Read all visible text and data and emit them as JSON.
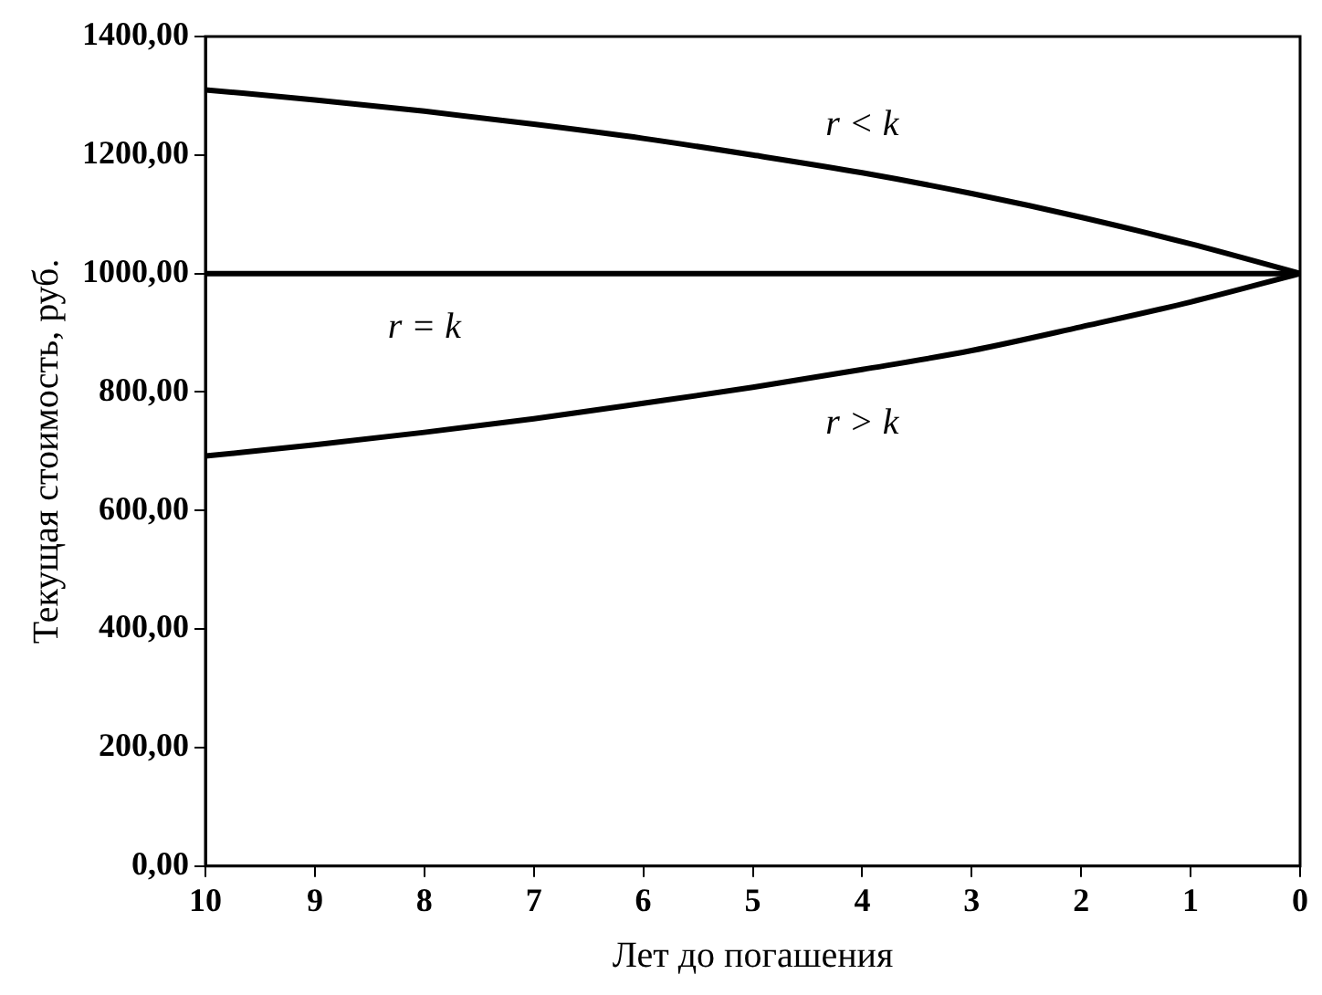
{
  "chart_data": {
    "type": "line",
    "xlabel": "Лет до погашения",
    "ylabel": "Текущая стоимость, руб.",
    "x": [
      10,
      9,
      8,
      7,
      6,
      5,
      4,
      3,
      2,
      1,
      0
    ],
    "series": [
      {
        "name": "r < k",
        "color": "#000000",
        "values": [
          1310,
          1293,
          1274,
          1252,
          1228,
          1200,
          1170,
          1135,
          1095,
          1050,
          1000
        ]
      },
      {
        "name": "r = k",
        "color": "#000000",
        "values": [
          1000,
          1000,
          1000,
          1000,
          1000,
          1000,
          1000,
          1000,
          1000,
          1000,
          1000
        ]
      },
      {
        "name": "r > k",
        "color": "#000000",
        "values": [
          692,
          711,
          732,
          755,
          781,
          808,
          838,
          870,
          910,
          952,
          1000
        ]
      }
    ],
    "xlim": [
      10,
      0
    ],
    "xticks": [
      10,
      9,
      8,
      7,
      6,
      5,
      4,
      3,
      2,
      1,
      0
    ],
    "ylim": [
      0,
      1400
    ],
    "yticks": [
      {
        "value": 0,
        "label": "0,00"
      },
      {
        "value": 200,
        "label": "200,00"
      },
      {
        "value": 400,
        "label": "400,00"
      },
      {
        "value": 600,
        "label": "600,00"
      },
      {
        "value": 800,
        "label": "800,00"
      },
      {
        "value": 1000,
        "label": "1000,00"
      },
      {
        "value": 1200,
        "label": "1200,00"
      },
      {
        "value": 1400,
        "label": "1400,00"
      }
    ],
    "grid": false,
    "legend": false,
    "marker": "none",
    "line_style": "solid"
  }
}
